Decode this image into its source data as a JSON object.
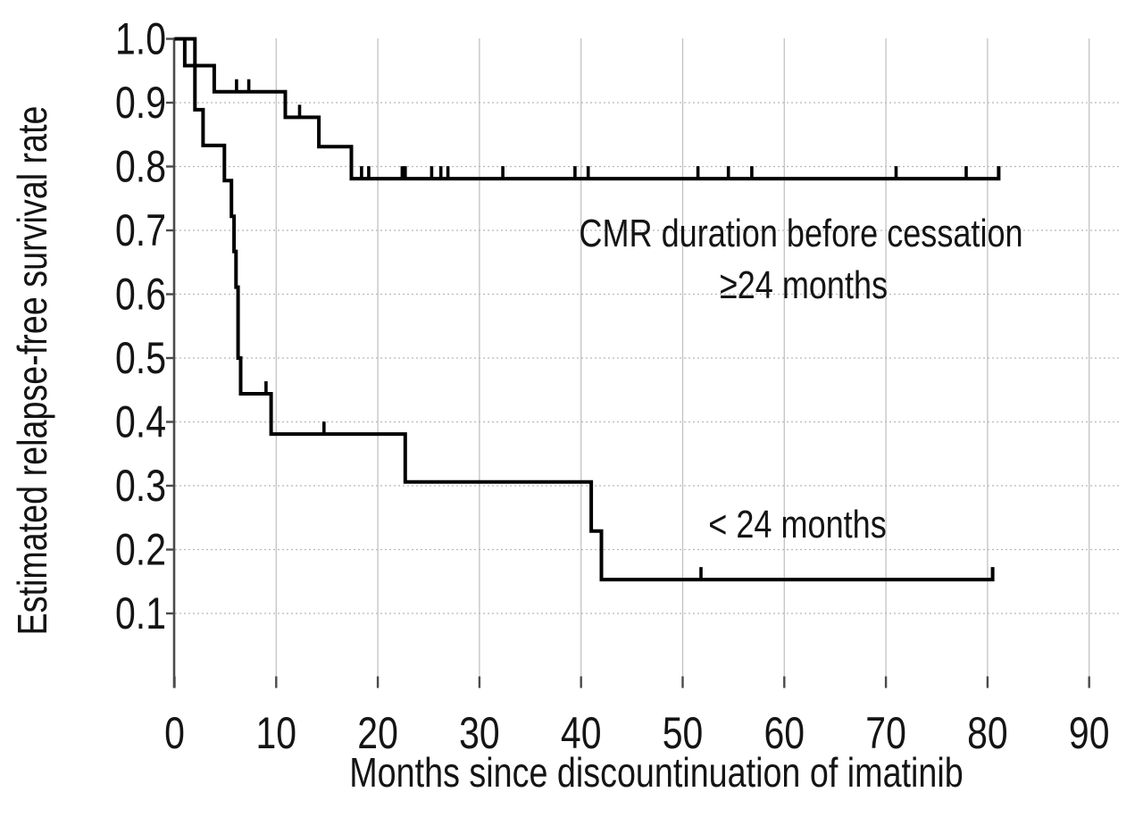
{
  "figure": {
    "background": "#ffffff",
    "text_color": "#141414",
    "curve_color": "#000000",
    "axis_color": "#4a4a4a",
    "grid_color_h": "#b8b8b8",
    "grid_color_v": "#c2c2c2"
  },
  "chart_data": {
    "type": "line",
    "subtype": "kaplan-meier-step",
    "title": "",
    "xlabel": "Months since discountinuation of imatinib",
    "ylabel": "Estimated relapse-free survival rate",
    "xlim": [
      0,
      90
    ],
    "ylim": [
      0,
      1.0
    ],
    "grid": true,
    "legend_position": "none",
    "x_ticks": {
      "values": [
        0,
        10,
        20,
        30,
        40,
        50,
        60,
        70,
        80,
        90
      ],
      "labels": [
        "0",
        "10",
        "20",
        "30",
        "40",
        "50",
        "60",
        "70",
        "80",
        "90"
      ]
    },
    "y_ticks": {
      "values": [
        1.0,
        0.9,
        0.8,
        0.7,
        0.6,
        0.5,
        0.4,
        0.3,
        0.2,
        0.1
      ],
      "labels": [
        "1.0",
        "0.9",
        "0.8",
        "0.7",
        "0.6",
        "0.5",
        "0.4",
        "0.3",
        "0.2",
        "0.1"
      ]
    },
    "series": [
      {
        "name": "CMR duration before cessation >=24 months",
        "annotation_lines": [
          "CMR duration before cessation",
          "≥24 months"
        ],
        "points": [
          [
            0,
            1.0
          ],
          [
            1.0,
            0.958
          ],
          [
            3.9,
            0.917
          ],
          [
            10.9,
            0.877
          ],
          [
            14.2,
            0.831
          ],
          [
            17.4,
            0.781
          ]
        ],
        "end": [
          81.1,
          0.781
        ],
        "end_tick": true,
        "censor_marks": [
          [
            6.1,
            0.917
          ],
          [
            7.3,
            0.917
          ],
          [
            12.3,
            0.877
          ],
          [
            18.4,
            0.781
          ],
          [
            19.1,
            0.781
          ],
          [
            22.4,
            0.781
          ],
          [
            22.7,
            0.781
          ],
          [
            25.3,
            0.781
          ],
          [
            26.2,
            0.781
          ],
          [
            26.9,
            0.781
          ],
          [
            32.3,
            0.781
          ],
          [
            39.4,
            0.781
          ],
          [
            40.7,
            0.781
          ],
          [
            51.5,
            0.781
          ],
          [
            54.5,
            0.781
          ],
          [
            56.8,
            0.781
          ],
          [
            71.0,
            0.781
          ],
          [
            77.9,
            0.781
          ]
        ]
      },
      {
        "name": "CMR duration before cessation <24 months",
        "annotation_lines": [
          "< 24 months"
        ],
        "points": [
          [
            0,
            1.0
          ],
          [
            2.0,
            0.889
          ],
          [
            2.8,
            0.833
          ],
          [
            4.9,
            0.778
          ],
          [
            5.6,
            0.722
          ],
          [
            5.85,
            0.667
          ],
          [
            6.05,
            0.611
          ],
          [
            6.25,
            0.5
          ],
          [
            6.5,
            0.444
          ],
          [
            9.5,
            0.381
          ],
          [
            22.7,
            0.306
          ],
          [
            41.0,
            0.229
          ],
          [
            42.0,
            0.153
          ]
        ],
        "end": [
          80.5,
          0.153
        ],
        "end_tick": true,
        "censor_marks": [
          [
            9.0,
            0.444
          ],
          [
            14.7,
            0.381
          ],
          [
            51.8,
            0.153
          ]
        ]
      }
    ],
    "annotations": [
      {
        "lines": [
          "CMR duration before cessation",
          "≥24 months"
        ],
        "x_month": 61.6,
        "y_value": 0.697
      },
      {
        "lines": [
          "< 24 months"
        ],
        "x_month": 61.3,
        "y_value": 0.241
      }
    ]
  }
}
